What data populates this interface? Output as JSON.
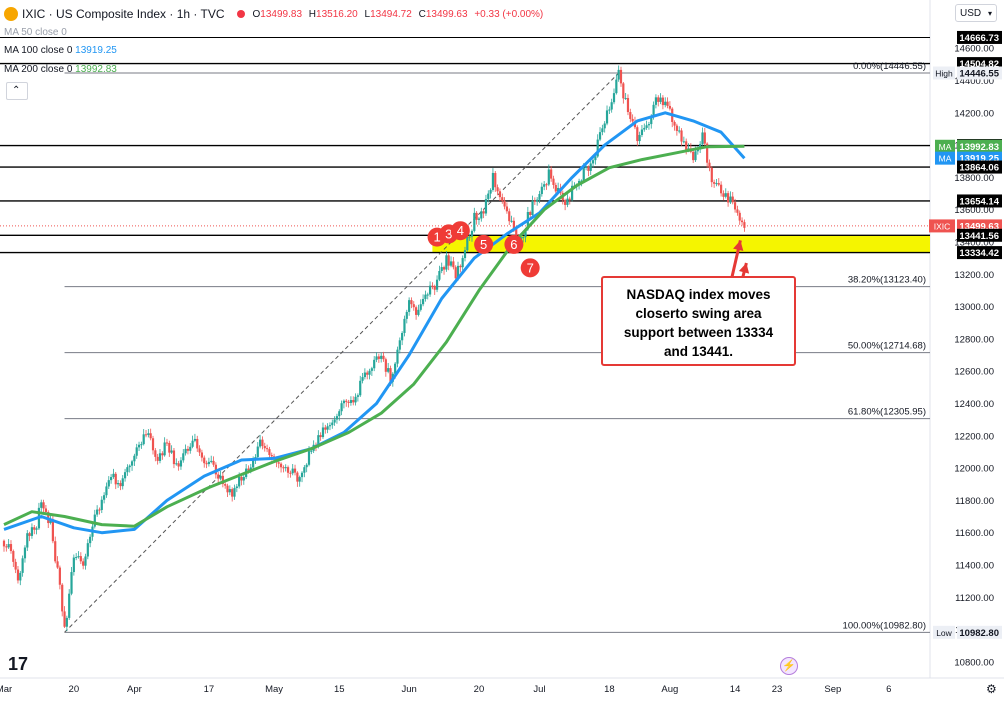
{
  "header": {
    "title": "IXIC · US Composite Index · 1h · TVC",
    "ohlc": [
      {
        "label": "O",
        "value": "13499.83"
      },
      {
        "label": "H",
        "value": "13516.20"
      },
      {
        "label": "L",
        "value": "13494.72"
      },
      {
        "label": "C",
        "value": "13499.63"
      },
      {
        "label": "",
        "value": "+0.33 (+0.00%)"
      }
    ],
    "currency": "USD"
  },
  "indicators": [
    {
      "label": "MA 50 close 0",
      "value": "",
      "color": "#9aa0ab"
    },
    {
      "label": "MA 100 close 0",
      "value": "13919.25",
      "color": "#2196f3"
    },
    {
      "label": "MA 200 close 0",
      "value": "13992.83",
      "color": "#4caf50"
    }
  ],
  "colors": {
    "up": "#26a69a",
    "down": "#ef5350",
    "ma100": "#2196f3",
    "ma200": "#4caf50",
    "zone": "#f5f500",
    "callout": "#e53935",
    "fib": "#787b86"
  },
  "annotation": {
    "text_lines": [
      "NASDAQ index moves",
      "closerto swing area",
      "support between 13334",
      "and 13441."
    ],
    "markers": [
      "1",
      "3",
      "4",
      "5",
      "6",
      "7"
    ]
  },
  "footer": {
    "logo": "17",
    "settings_icon": "gear-icon",
    "bolt_icon": "lightning-icon"
  },
  "chart_data": {
    "type": "candlestick",
    "title": "IXIC · US Composite Index · 1h · TVC",
    "ylim": [
      10700,
      14750
    ],
    "y_ticks": [
      10800,
      11000,
      11200,
      11400,
      11600,
      11800,
      12000,
      12200,
      12400,
      12600,
      12800,
      13000,
      13200,
      13400,
      13600,
      13800,
      14000,
      14200,
      14400,
      14600
    ],
    "x_ticks": [
      "Mar",
      "20",
      "Apr",
      "17",
      "May",
      "15",
      "Jun",
      "20",
      "Jul",
      "18",
      "Aug",
      "14",
      "23",
      "Sep",
      "6"
    ],
    "x_tick_index": [
      0,
      15,
      28,
      44,
      58,
      72,
      87,
      102,
      115,
      130,
      143,
      157,
      166,
      178,
      190
    ],
    "x_range": [
      0,
      198
    ],
    "last_bar_index": 159,
    "close_path": [
      [
        0,
        11550
      ],
      [
        2,
        11450
      ],
      [
        3,
        11300
      ],
      [
        5,
        11600
      ],
      [
        7,
        11650
      ],
      [
        8,
        11800
      ],
      [
        10,
        11650
      ],
      [
        11,
        11400
      ],
      [
        12,
        11300
      ],
      [
        13,
        10982.8
      ],
      [
        14,
        11200
      ],
      [
        15,
        11450
      ],
      [
        17,
        11400
      ],
      [
        19,
        11650
      ],
      [
        21,
        11800
      ],
      [
        23,
        11950
      ],
      [
        25,
        11900
      ],
      [
        27,
        12050
      ],
      [
        29,
        12150
      ],
      [
        31,
        12200
      ],
      [
        33,
        12050
      ],
      [
        35,
        12150
      ],
      [
        37,
        12000
      ],
      [
        39,
        12100
      ],
      [
        41,
        12150
      ],
      [
        43,
        12050
      ],
      [
        45,
        12000
      ],
      [
        47,
        11900
      ],
      [
        49,
        11850
      ],
      [
        51,
        11950
      ],
      [
        53,
        12000
      ],
      [
        55,
        12150
      ],
      [
        57,
        12100
      ],
      [
        59,
        12050
      ],
      [
        61,
        12000
      ],
      [
        63,
        11950
      ],
      [
        65,
        12050
      ],
      [
        67,
        12150
      ],
      [
        69,
        12250
      ],
      [
        71,
        12300
      ],
      [
        73,
        12450
      ],
      [
        75,
        12400
      ],
      [
        77,
        12550
      ],
      [
        79,
        12650
      ],
      [
        81,
        12700
      ],
      [
        83,
        12550
      ],
      [
        85,
        12800
      ],
      [
        87,
        13050
      ],
      [
        89,
        12950
      ],
      [
        91,
        13100
      ],
      [
        93,
        13150
      ],
      [
        95,
        13300
      ],
      [
        97,
        13200
      ],
      [
        99,
        13350
      ],
      [
        101,
        13550
      ],
      [
        103,
        13600
      ],
      [
        105,
        13800
      ],
      [
        107,
        13650
      ],
      [
        109,
        13500
      ],
      [
        111,
        13420
      ],
      [
        113,
        13600
      ],
      [
        115,
        13700
      ],
      [
        117,
        13820
      ],
      [
        119,
        13700
      ],
      [
        121,
        13650
      ],
      [
        123,
        13780
      ],
      [
        125,
        13850
      ],
      [
        127,
        13950
      ],
      [
        129,
        14150
      ],
      [
        131,
        14300
      ],
      [
        132,
        14446.55
      ],
      [
        134,
        14200
      ],
      [
        136,
        14050
      ],
      [
        138,
        14100
      ],
      [
        140,
        14300
      ],
      [
        142,
        14250
      ],
      [
        144,
        14150
      ],
      [
        146,
        14000
      ],
      [
        148,
        13900
      ],
      [
        150,
        14050
      ],
      [
        152,
        13800
      ],
      [
        154,
        13700
      ],
      [
        156,
        13650
      ],
      [
        158,
        13550
      ],
      [
        159,
        13499.63
      ]
    ],
    "series": [
      {
        "name": "MA 100",
        "color": "#2196f3",
        "points": [
          [
            0,
            11620
          ],
          [
            8,
            11700
          ],
          [
            15,
            11630
          ],
          [
            21,
            11600
          ],
          [
            28,
            11620
          ],
          [
            35,
            11800
          ],
          [
            43,
            11950
          ],
          [
            51,
            12050
          ],
          [
            58,
            12060
          ],
          [
            66,
            12120
          ],
          [
            73,
            12220
          ],
          [
            80,
            12400
          ],
          [
            87,
            12700
          ],
          [
            94,
            13050
          ],
          [
            101,
            13300
          ],
          [
            108,
            13450
          ],
          [
            115,
            13580
          ],
          [
            122,
            13800
          ],
          [
            129,
            14000
          ],
          [
            136,
            14150
          ],
          [
            142,
            14200
          ],
          [
            148,
            14150
          ],
          [
            154,
            14080
          ],
          [
            159,
            13919.25
          ]
        ]
      },
      {
        "name": "MA 200",
        "color": "#4caf50",
        "points": [
          [
            0,
            11650
          ],
          [
            6,
            11730
          ],
          [
            13,
            11700
          ],
          [
            21,
            11650
          ],
          [
            28,
            11640
          ],
          [
            35,
            11760
          ],
          [
            44,
            11880
          ],
          [
            51,
            11960
          ],
          [
            58,
            12040
          ],
          [
            66,
            12120
          ],
          [
            74,
            12220
          ],
          [
            81,
            12340
          ],
          [
            88,
            12520
          ],
          [
            95,
            12780
          ],
          [
            102,
            13100
          ],
          [
            109,
            13380
          ],
          [
            116,
            13600
          ],
          [
            123,
            13750
          ],
          [
            130,
            13860
          ],
          [
            137,
            13910
          ],
          [
            144,
            13950
          ],
          [
            151,
            13990
          ],
          [
            159,
            13992.83
          ]
        ]
      }
    ],
    "last_price": {
      "tag": "IXIC",
      "value": 13499.63
    },
    "labels": [
      {
        "text": "14666.73",
        "value": 14666.73
      },
      {
        "text": "14504.82",
        "value": 14504.82
      },
      {
        "text": "14446.55",
        "value": 14446.55,
        "tag": "High"
      },
      {
        "text": "13997.13",
        "value": 13997.13
      },
      {
        "text": "13992.83",
        "value": 13992.83,
        "tag": "MA"
      },
      {
        "text": "13919.25",
        "value": 13919.25,
        "tag": "MA"
      },
      {
        "text": "13864.06",
        "value": 13864.06
      },
      {
        "text": "13654.14",
        "value": 13654.14
      },
      {
        "text": "13499.63",
        "value": 13499.63,
        "tag": "IXIC"
      },
      {
        "text": "13441.56",
        "value": 13441.56
      },
      {
        "text": "13334.42",
        "value": 13334.42
      },
      {
        "text": "10982.80",
        "value": 10982.8,
        "tag": "Low"
      }
    ],
    "horizontal_levels": [
      14504.82,
      13997.13,
      13864.06,
      13654.14,
      13441.56,
      13334.42
    ],
    "top_level": 14666.73,
    "zone": [
      13334.42,
      13441.56
    ],
    "fibonacci": [
      {
        "text": "0.00%(14446.55)",
        "value": 14446.55
      },
      {
        "text": "38.20%(13123.40)",
        "value": 13123.4
      },
      {
        "text": "50.00%(12714.68)",
        "value": 12714.68
      },
      {
        "text": "61.80%(12305.95)",
        "value": 12305.95
      },
      {
        "text": "100.00%(10982.80)",
        "value": 10982.8
      }
    ],
    "fib_start_index": 13,
    "numbered_markers": [
      {
        "label": "1",
        "x": 93,
        "y": 13430
      },
      {
        "label": "3",
        "x": 95.5,
        "y": 13450
      },
      {
        "label": "4",
        "x": 98,
        "y": 13470
      },
      {
        "label": "5",
        "x": 103,
        "y": 13385
      },
      {
        "label": "6",
        "x": 109.5,
        "y": 13385
      },
      {
        "label": "7",
        "x": 113,
        "y": 13240
      }
    ]
  }
}
